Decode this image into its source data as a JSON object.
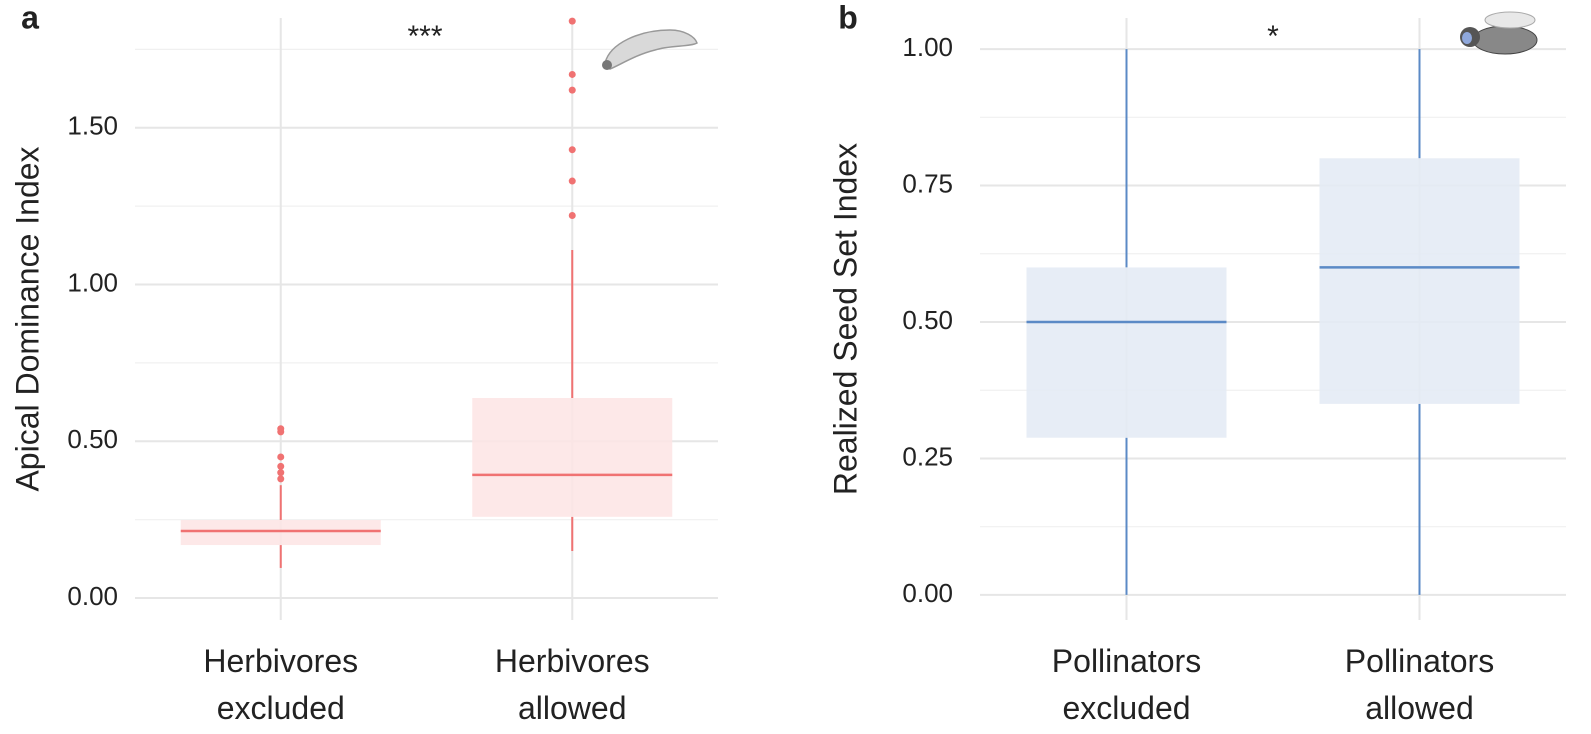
{
  "chart_data": [
    {
      "type": "box",
      "panel": "a",
      "annotation": "***",
      "ylabel": "Apical Dominance Index",
      "categories": [
        "Herbivores excluded",
        "Herbivores allowed"
      ],
      "color": "#f07272",
      "fill_color": "#fde4e4",
      "boxes": [
        {
          "whisker_low": 0.096,
          "q1": 0.169,
          "median": 0.214,
          "q3": 0.249,
          "whisker_high": 0.36,
          "outliers": [
            0.38,
            0.4,
            0.42,
            0.45,
            0.53,
            0.54
          ]
        },
        {
          "whisker_low": 0.15,
          "q1": 0.259,
          "median": 0.393,
          "q3": 0.638,
          "whisker_high": 1.11,
          "outliers": [
            1.22,
            1.33,
            1.43,
            1.62,
            1.67,
            1.84
          ]
        }
      ],
      "ylim": [
        -0.07,
        1.85
      ],
      "yticks": [
        {
          "value": 0,
          "label": "0.00"
        },
        {
          "value": 0.5,
          "label": "0.50"
        },
        {
          "value": 1,
          "label": "1.00"
        },
        {
          "value": 1.5,
          "label": "1.50"
        }
      ],
      "minor_grid": [
        0.25,
        0.75,
        1.25,
        1.75
      ],
      "grid": true
    },
    {
      "type": "box",
      "panel": "b",
      "annotation": "*",
      "ylabel": "Realized Seed Set Index",
      "categories": [
        "Pollinators excluded",
        "Pollinators allowed"
      ],
      "color": "#5b8ac6",
      "fill_color": "#e3eaf4",
      "boxes": [
        {
          "whisker_low": 0,
          "q1": 0.288,
          "median": 0.5,
          "q3": 0.6,
          "whisker_high": 1,
          "outliers": []
        },
        {
          "whisker_low": 0,
          "q1": 0.35,
          "median": 0.6,
          "q3": 0.8,
          "whisker_high": 1,
          "outliers": []
        }
      ],
      "ylim": [
        -0.046,
        1.057
      ],
      "yticks": [
        {
          "value": 0,
          "label": "0.00"
        },
        {
          "value": 0.25,
          "label": "0.25"
        },
        {
          "value": 0.5,
          "label": "0.50"
        },
        {
          "value": 0.75,
          "label": "0.75"
        },
        {
          "value": 1,
          "label": "1.00"
        }
      ],
      "minor_grid": [
        0.125,
        0.375,
        0.625,
        0.875
      ],
      "grid": true
    }
  ]
}
